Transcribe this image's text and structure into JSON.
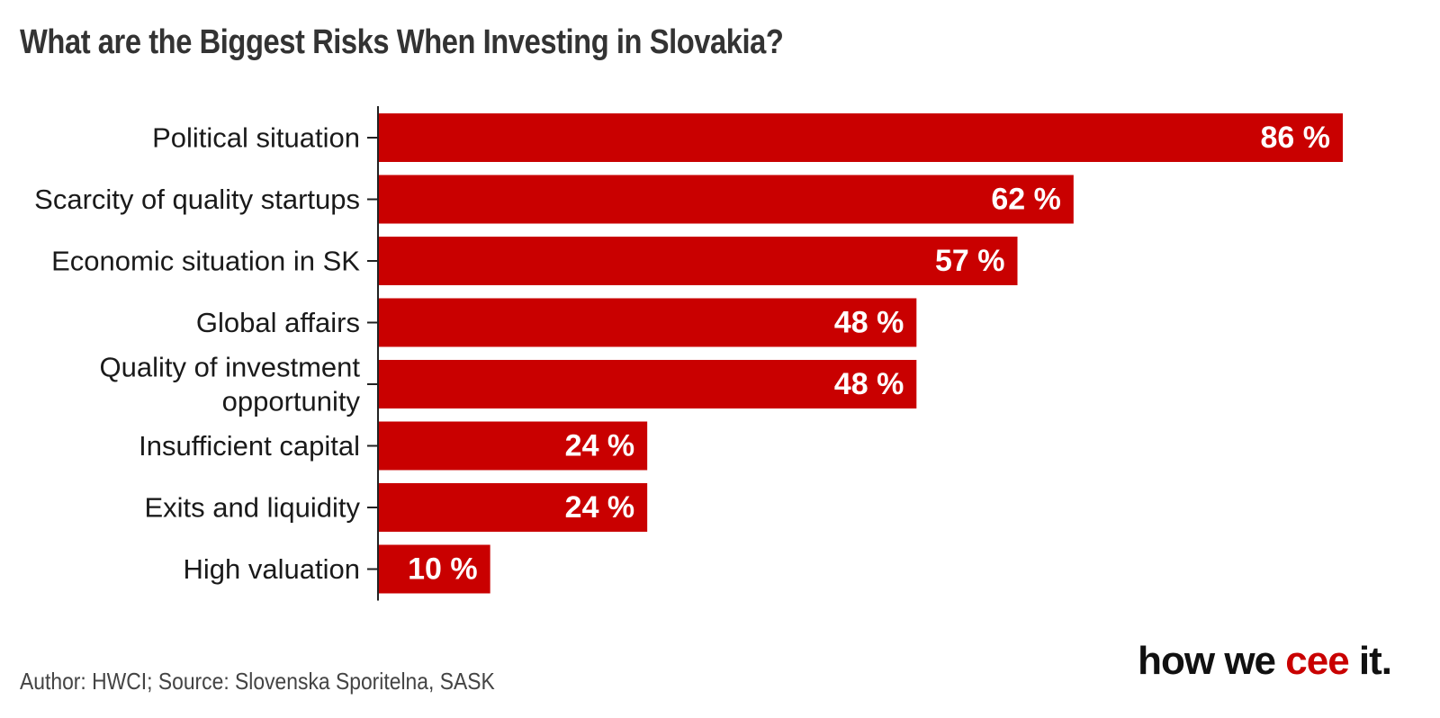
{
  "title": "What are the Biggest Risks When Investing in Slovakia?",
  "footer": {
    "author": "Author: HWCI; Source: Slovenska Sporitelna, SASK"
  },
  "brand": {
    "part1": "how we ",
    "accent": "cee",
    "part2": " it."
  },
  "colors": {
    "bar": "#c90000",
    "bar_label": "#ffffff",
    "category_label": "#1a1a1a",
    "axis": "#222222",
    "brand_accent": "#c90000"
  },
  "chart_data": {
    "type": "bar",
    "orientation": "horizontal",
    "title": "What are the Biggest Risks When Investing in Slovakia?",
    "categories": [
      [
        "Political situation"
      ],
      [
        "Scarcity of quality startups"
      ],
      [
        "Economic situation in SK"
      ],
      [
        "Global affairs"
      ],
      [
        "Quality of investment",
        "opportunity"
      ],
      [
        "Insufficient capital"
      ],
      [
        "Exits and liquidity"
      ],
      [
        "High valuation"
      ]
    ],
    "values": [
      86,
      62,
      57,
      48,
      48,
      24,
      24,
      10
    ],
    "value_labels": [
      "86 %",
      "62 %",
      "57 %",
      "48 %",
      "48 %",
      "24 %",
      "24 %",
      "10 %"
    ],
    "unit": "%",
    "xlim": [
      0,
      86
    ],
    "grid": false,
    "legend": "none"
  }
}
